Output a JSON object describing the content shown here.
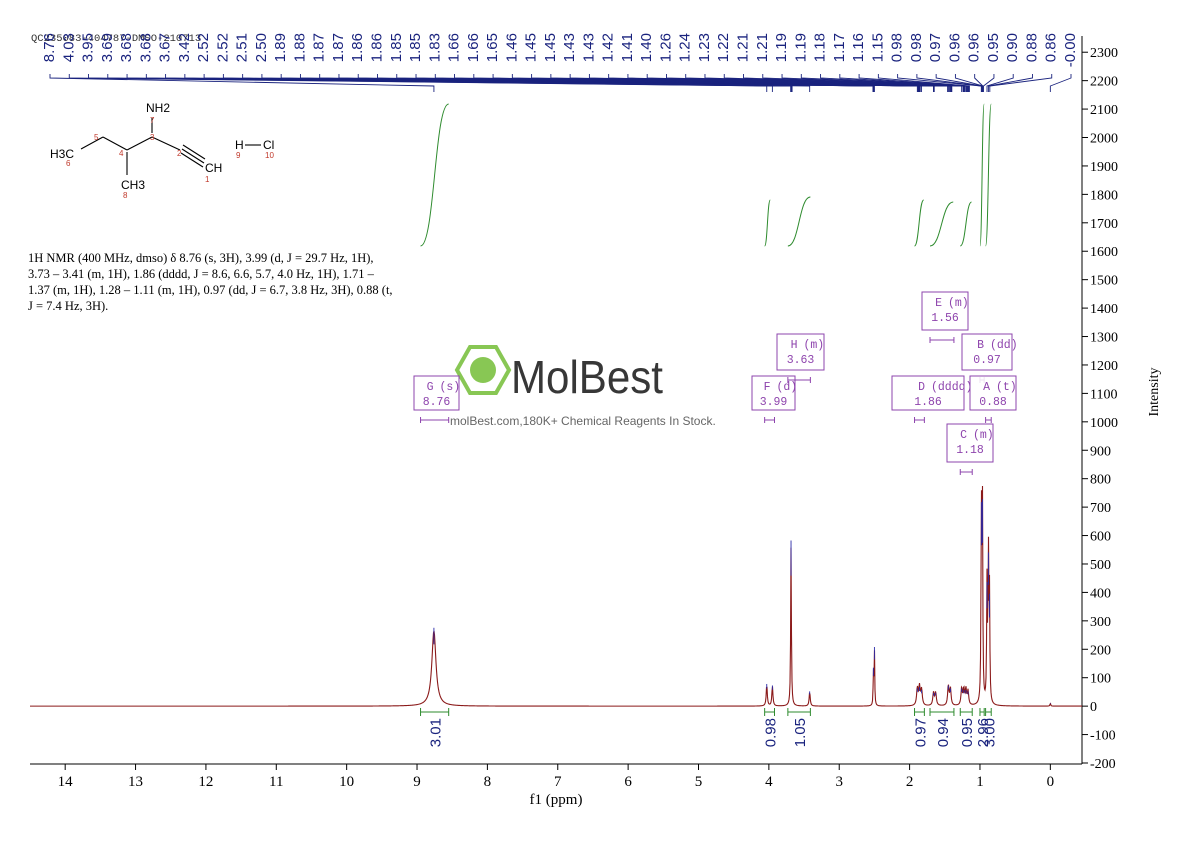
{
  "header_id": "QC235083-404787-DMSO-210713",
  "summary": "1H NMR (400 MHz, dmso) δ 8.76 (s, 3H), 3.99 (d, J = 29.7 Hz, 1H), 3.73 – 3.41 (m, 1H), 1.86 (dddd, J = 8.6, 6.6, 5.7, 4.0 Hz, 1H), 1.71 – 1.37 (m, 1H), 1.28 – 1.11 (m, 1H), 0.97 (dd, J = 6.7, 3.8 Hz, 3H), 0.88 (t, J = 7.4 Hz, 3H).",
  "structure": {
    "nh2": "NH2",
    "ch3_left": "H3C",
    "ch3_bottom": "CH3",
    "ch": "CH",
    "hcl_h": "H",
    "hcl_cl": "Cl",
    "numbers": [
      "7",
      "5",
      "3",
      "6",
      "4",
      "2",
      "8",
      "1",
      "9",
      "10"
    ]
  },
  "watermark": {
    "brand": "MolBest",
    "tagline": "molBest.com,180K+ Chemical Reagents In Stock."
  },
  "colors": {
    "spectrum": "#8b1a1a",
    "peak_labels": "#1a237e",
    "integral": "#2e8b2e",
    "multiplet_box": "#8e44ad"
  },
  "chart_data": {
    "type": "line",
    "title": "",
    "xlabel": "f1 (ppm)",
    "ylabel": "Intensity",
    "xlim": [
      14.5,
      -0.45
    ],
    "ylim": [
      -200,
      2350
    ],
    "x_ticks": [
      "14",
      "13",
      "12",
      "11",
      "10",
      "9",
      "8",
      "7",
      "6",
      "5",
      "4",
      "3",
      "2",
      "1",
      "0"
    ],
    "y_ticks": [
      "2300",
      "2200",
      "2100",
      "2000",
      "1900",
      "1800",
      "1700",
      "1600",
      "1500",
      "1400",
      "1300",
      "1200",
      "1100",
      "1000",
      "900",
      "800",
      "700",
      "600",
      "500",
      "400",
      "300",
      "200",
      "100",
      "0",
      "-100",
      "-200"
    ],
    "peaks": [
      {
        "x": 8.76,
        "h": 265,
        "w": 0.035
      },
      {
        "x": 4.03,
        "h": 75,
        "w": 0.009
      },
      {
        "x": 3.95,
        "h": 70,
        "w": 0.009
      },
      {
        "x": 3.685,
        "h": 560,
        "w": 0.006
      },
      {
        "x": 3.42,
        "h": 50,
        "w": 0.009
      },
      {
        "x": 2.515,
        "h": 130,
        "w": 0.004
      },
      {
        "x": 2.5,
        "h": 200,
        "w": 0.005
      },
      {
        "x": 1.89,
        "h": 60,
        "w": 0.012
      },
      {
        "x": 1.86,
        "h": 65,
        "w": 0.012
      },
      {
        "x": 1.83,
        "h": 55,
        "w": 0.012
      },
      {
        "x": 1.66,
        "h": 45,
        "w": 0.012
      },
      {
        "x": 1.63,
        "h": 45,
        "w": 0.012
      },
      {
        "x": 1.45,
        "h": 70,
        "w": 0.011
      },
      {
        "x": 1.42,
        "h": 60,
        "w": 0.011
      },
      {
        "x": 1.26,
        "h": 60,
        "w": 0.011
      },
      {
        "x": 1.23,
        "h": 55,
        "w": 0.011
      },
      {
        "x": 1.2,
        "h": 55,
        "w": 0.011
      },
      {
        "x": 1.17,
        "h": 50,
        "w": 0.011
      },
      {
        "x": 0.98,
        "h": 690,
        "w": 0.006
      },
      {
        "x": 0.965,
        "h": 700,
        "w": 0.006
      },
      {
        "x": 0.9,
        "h": 420,
        "w": 0.006
      },
      {
        "x": 0.88,
        "h": 520,
        "w": 0.006
      },
      {
        "x": 0.865,
        "h": 380,
        "w": 0.006
      },
      {
        "x": 0.0,
        "h": 10,
        "w": 0.006
      }
    ],
    "peak_labels": [
      "8.76",
      "4.03",
      "3.95",
      "3.69",
      "3.68",
      "3.68",
      "3.67",
      "3.42",
      "2.52",
      "2.52",
      "2.51",
      "2.50",
      "1.89",
      "1.88",
      "1.87",
      "1.87",
      "1.86",
      "1.86",
      "1.85",
      "1.85",
      "1.83",
      "1.66",
      "1.66",
      "1.65",
      "1.46",
      "1.45",
      "1.45",
      "1.43",
      "1.43",
      "1.42",
      "1.41",
      "1.40",
      "1.26",
      "1.24",
      "1.23",
      "1.22",
      "1.21",
      "1.21",
      "1.19",
      "1.19",
      "1.18",
      "1.17",
      "1.16",
      "1.15",
      "0.98",
      "0.98",
      "0.97",
      "0.96",
      "0.96",
      "0.95",
      "0.90",
      "0.88",
      "0.86",
      "-0.00"
    ],
    "multiplets": [
      {
        "letter": "G",
        "mult": "(s)",
        "shift": "8.76",
        "range": [
          8.95,
          8.55
        ]
      },
      {
        "letter": "F",
        "mult": "(d)",
        "shift": "3.99",
        "range": [
          4.06,
          3.92
        ]
      },
      {
        "letter": "H",
        "mult": "(m)",
        "shift": "3.63",
        "range": [
          3.73,
          3.41
        ]
      },
      {
        "letter": "E",
        "mult": "(m)",
        "shift": "1.56",
        "range": [
          1.71,
          1.37
        ]
      },
      {
        "letter": "D",
        "mult": "(dddd)",
        "shift": "1.86",
        "range": [
          1.93,
          1.79
        ]
      },
      {
        "letter": "C",
        "mult": "(m)",
        "shift": "1.18",
        "range": [
          1.28,
          1.11
        ]
      },
      {
        "letter": "B",
        "mult": "(dd)",
        "shift": "0.97",
        "range": [
          1.0,
          0.94
        ]
      },
      {
        "letter": "A",
        "mult": "(t)",
        "shift": "0.88",
        "range": [
          0.92,
          0.84
        ]
      }
    ],
    "integrals": [
      {
        "value": "3.01",
        "range": [
          8.95,
          8.55
        ]
      },
      {
        "value": "0.98",
        "range": [
          4.06,
          3.92
        ]
      },
      {
        "value": "1.05",
        "range": [
          3.73,
          3.41
        ]
      },
      {
        "value": "0.97",
        "range": [
          1.93,
          1.79
        ]
      },
      {
        "value": "0.94",
        "range": [
          1.71,
          1.37
        ]
      },
      {
        "value": "0.95",
        "range": [
          1.28,
          1.11
        ]
      },
      {
        "value": "2.96",
        "range": [
          1.0,
          0.94
        ]
      },
      {
        "value": "3.00",
        "range": [
          0.92,
          0.84
        ]
      }
    ]
  }
}
